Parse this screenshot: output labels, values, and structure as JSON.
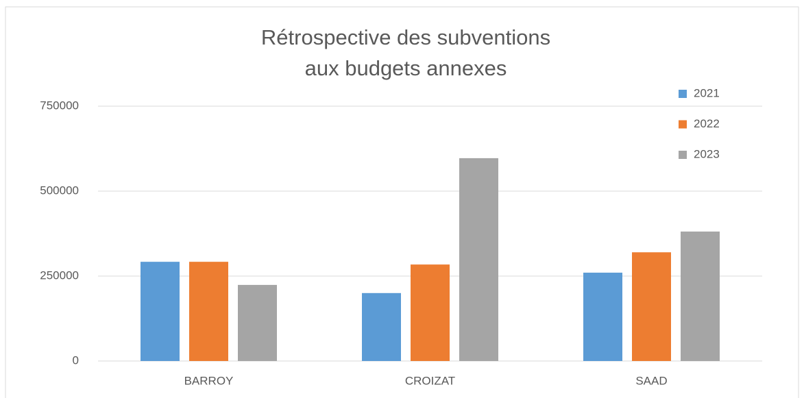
{
  "chart_data": {
    "type": "bar",
    "title": [
      "Rétrospective des subventions",
      "aux budgets annexes"
    ],
    "categories": [
      "BARROY",
      "CROIZAT",
      "SAAD"
    ],
    "series": [
      {
        "name": "2021",
        "color": "#5b9bd5",
        "values": [
          292000,
          200000,
          260000
        ]
      },
      {
        "name": "2022",
        "color": "#ed7d31",
        "values": [
          292000,
          284000,
          320000
        ]
      },
      {
        "name": "2023",
        "color": "#a5a5a5",
        "values": [
          224000,
          597000,
          381000
        ]
      }
    ],
    "ylim": [
      0,
      750000
    ],
    "yticks": [
      0,
      250000,
      500000,
      750000
    ],
    "grid": true,
    "legend": "top-right"
  }
}
